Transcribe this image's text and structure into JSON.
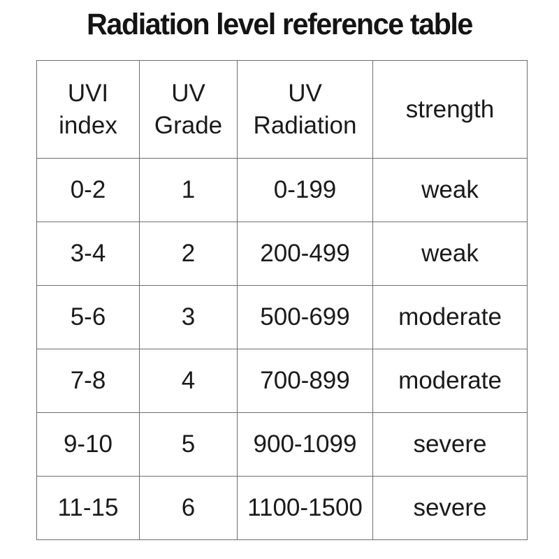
{
  "title": "Radiation level reference table",
  "table": {
    "headers": [
      "UVI\nindex",
      "UV\nGrade",
      "UV\nRadiation",
      "strength"
    ],
    "rows": [
      {
        "cells": [
          "0-2",
          "1",
          "0-199",
          "weak"
        ]
      },
      {
        "cells": [
          "3-4",
          "2",
          "200-499",
          "weak"
        ]
      },
      {
        "cells": [
          "5-6",
          "3",
          "500-699",
          "moderate"
        ]
      },
      {
        "cells": [
          "7-8",
          "4",
          "700-899",
          "moderate"
        ]
      },
      {
        "cells": [
          "9-10",
          "5",
          "900-1099",
          "severe"
        ]
      },
      {
        "cells": [
          "11-15",
          "6",
          "1100-1500",
          "severe"
        ]
      }
    ]
  },
  "chart_data": {
    "type": "table",
    "title": "Radiation level reference table",
    "columns": [
      "UVI index",
      "UV Grade",
      "UV Radiation",
      "strength"
    ],
    "rows": [
      [
        "0-2",
        "1",
        "0-199",
        "weak"
      ],
      [
        "3-4",
        "2",
        "200-499",
        "weak"
      ],
      [
        "5-6",
        "3",
        "500-699",
        "moderate"
      ],
      [
        "7-8",
        "4",
        "700-899",
        "moderate"
      ],
      [
        "9-10",
        "5",
        "900-1099",
        "severe"
      ],
      [
        "11-15",
        "6",
        "1100-1500",
        "severe"
      ]
    ]
  },
  "colors": {
    "background": "#ffffff",
    "text": "#1a1a1a",
    "border": "#6e6e6e"
  }
}
